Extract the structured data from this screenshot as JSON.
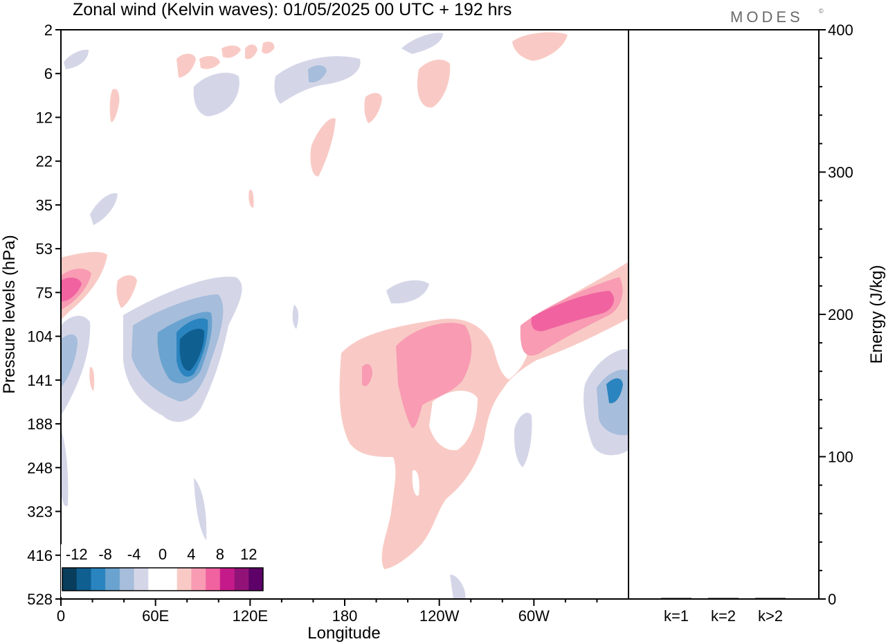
{
  "chart_data": [
    {
      "type": "heatmap",
      "title": "Zonal wind (Kelvin waves):  01/05/2025  00 UTC  + 192 hrs",
      "xlabel": "Longitude",
      "ylabel": "Pressure levels (hPa)",
      "x_tick_labels": [
        "0",
        "60E",
        "120E",
        "180",
        "120W",
        "60W"
      ],
      "x_tick_values_deg_east": [
        0,
        60,
        120,
        180,
        240,
        300
      ],
      "xlim_deg_east": [
        0,
        360
      ],
      "y_tick_labels": [
        "2",
        "6",
        "12",
        "22",
        "35",
        "53",
        "75",
        "104",
        "141",
        "188",
        "248",
        "323",
        "416",
        "528"
      ],
      "colorbar": {
        "labels": [
          "-12",
          "-8",
          "-4",
          "0",
          "4",
          "8",
          "12"
        ],
        "colors": [
          "#083d5c",
          "#0f5f91",
          "#2a84bf",
          "#6aa3cf",
          "#a6bddb",
          "#d4d6e8",
          "#ffffff",
          "#ffffff",
          "#f9cac5",
          "#f89bb3",
          "#f062a0",
          "#c51b8a",
          "#921378",
          "#5d0068"
        ]
      },
      "features": [
        {
          "sign": "negative",
          "min": -12,
          "lon_center": 77,
          "level": "104-141 hPa"
        },
        {
          "sign": "positive",
          "min": 4,
          "lon_center": 225,
          "level": "104-416 hPa"
        },
        {
          "sign": "positive",
          "max": 10,
          "lon_center": 320,
          "level": "75-104 hPa"
        },
        {
          "sign": "positive",
          "max": 8,
          "lon_center": 10,
          "level": "53-104 hPa"
        },
        {
          "sign": "negative",
          "min": -8,
          "lon_center": 353,
          "level": "141-188 hPa"
        }
      ]
    },
    {
      "type": "bar",
      "ylabel": "Energy (J/kg)",
      "categories": [
        "k=1",
        "k=2",
        "k>2"
      ],
      "values": [
        0.5,
        0.1,
        0.2
      ],
      "ylim": [
        0,
        400
      ],
      "y_tick_labels": [
        "0",
        "100",
        "200",
        "300",
        "400"
      ]
    }
  ],
  "logo": "MODES",
  "logo_mark": "©",
  "colors": {
    "neg": [
      "#083d5c",
      "#0f5f91",
      "#2a84bf",
      "#6aa3cf",
      "#a6bddb",
      "#d4d6e8"
    ],
    "pos": [
      "#f9cac5",
      "#f89bb3",
      "#f062a0",
      "#c51b8a",
      "#921378",
      "#5d0068"
    ]
  }
}
